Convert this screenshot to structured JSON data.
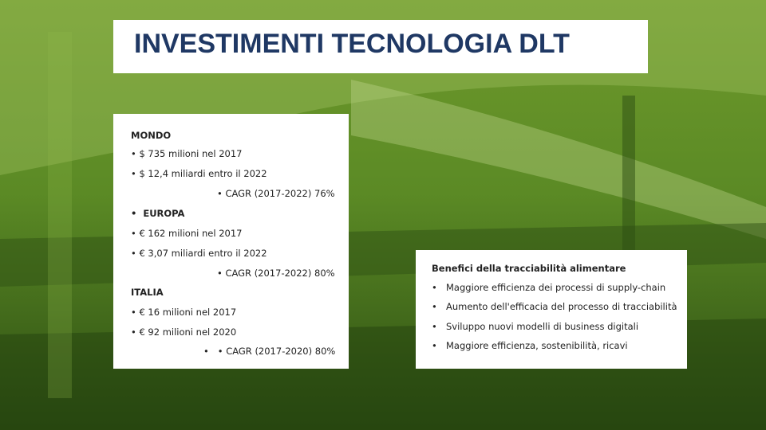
{
  "header": {
    "title": "INVESTIMENTI TECNOLOGIA DLT"
  },
  "left_panel": {
    "lines": [
      "MONDO",
      "• $ 735 milioni nel 2017",
      "• $ 12,4 miliardi entro il 2022",
      "• CAGR (2017-2022) 76%",
      "•  EUROPA",
      "• € 162 milioni nel 2017",
      "• € 3,07 miliardi entro il 2022",
      "• CAGR (2017-2022) 80%",
      "ITALIA",
      "• € 16 milioni nel 2017",
      "• € 92 milioni nel 2020",
      "•   • CAGR (2017-2020) 80%"
    ]
  },
  "right_panel": {
    "title": "Benefici della tracciabilità alimentare",
    "items": [
      "Maggiore efficienza dei processi di supply-chain",
      "Aumento dell'efficacia del processo di tracciabilità",
      "Sviluppo nuovi modelli di business digitali",
      "Maggiore efficienza, sostenibilità, ricavi"
    ]
  }
}
